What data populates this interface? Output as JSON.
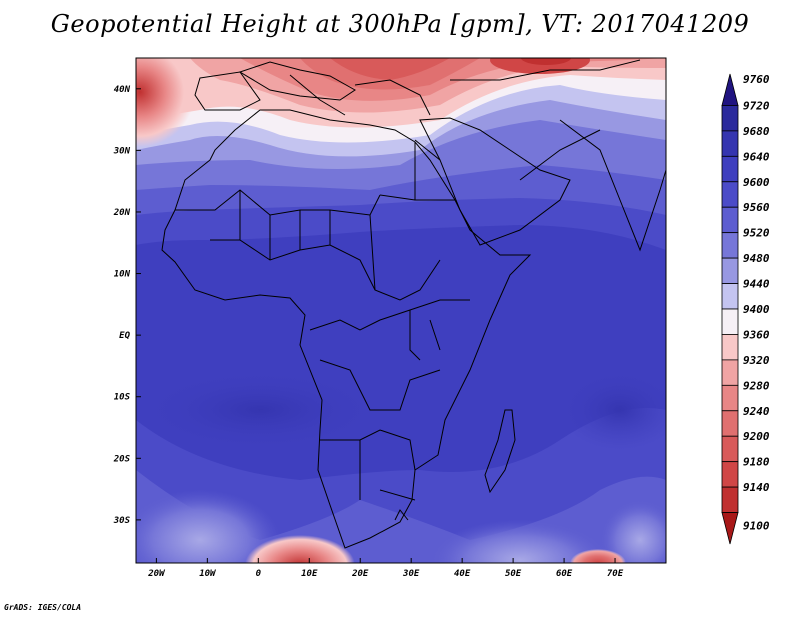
{
  "title": "Geopotential Height at 300hPa [gpm], VT: 2017041209",
  "credit": "GrADS: IGES/COLA",
  "map": {
    "lon_range": [
      -24,
      80
    ],
    "lat_range": [
      -37,
      45
    ],
    "x_ticks": [
      {
        "value": -20,
        "label": "20W"
      },
      {
        "value": -10,
        "label": "10W"
      },
      {
        "value": 0,
        "label": "0"
      },
      {
        "value": 10,
        "label": "10E"
      },
      {
        "value": 20,
        "label": "20E"
      },
      {
        "value": 30,
        "label": "30E"
      },
      {
        "value": 40,
        "label": "40E"
      },
      {
        "value": 50,
        "label": "50E"
      },
      {
        "value": 60,
        "label": "60E"
      },
      {
        "value": 70,
        "label": "70E"
      }
    ],
    "y_ticks": [
      {
        "value": 40,
        "label": "40N"
      },
      {
        "value": 30,
        "label": "30N"
      },
      {
        "value": 20,
        "label": "20N"
      },
      {
        "value": 10,
        "label": "10N"
      },
      {
        "value": 0,
        "label": "EQ"
      },
      {
        "value": -10,
        "label": "10S"
      },
      {
        "value": -20,
        "label": "20S"
      },
      {
        "value": -30,
        "label": "30S"
      }
    ]
  },
  "colorbar": {
    "levels": [
      {
        "label": "9760",
        "color": "#201480"
      },
      {
        "label": "9720",
        "color": "#2b2a9c"
      },
      {
        "label": "9680",
        "color": "#3535b0"
      },
      {
        "label": "9640",
        "color": "#3f3fbf"
      },
      {
        "label": "9600",
        "color": "#4b4bc8"
      },
      {
        "label": "9560",
        "color": "#5d5dd0"
      },
      {
        "label": "9520",
        "color": "#7676d8"
      },
      {
        "label": "9480",
        "color": "#9898e2"
      },
      {
        "label": "9440",
        "color": "#c4c4f0"
      },
      {
        "label": "9400",
        "color": "#f6f0f6"
      },
      {
        "label": "9360",
        "color": "#f8c8c8"
      },
      {
        "label": "9320",
        "color": "#f0a4a4"
      },
      {
        "label": "9280",
        "color": "#e88686"
      },
      {
        "label": "9240",
        "color": "#e07070"
      },
      {
        "label": "9200",
        "color": "#d85a5a"
      },
      {
        "label": "9180",
        "color": "#d04646"
      },
      {
        "label": "9140",
        "color": "#c03030"
      },
      {
        "label": "9100",
        "color": "#a81818"
      }
    ]
  }
}
